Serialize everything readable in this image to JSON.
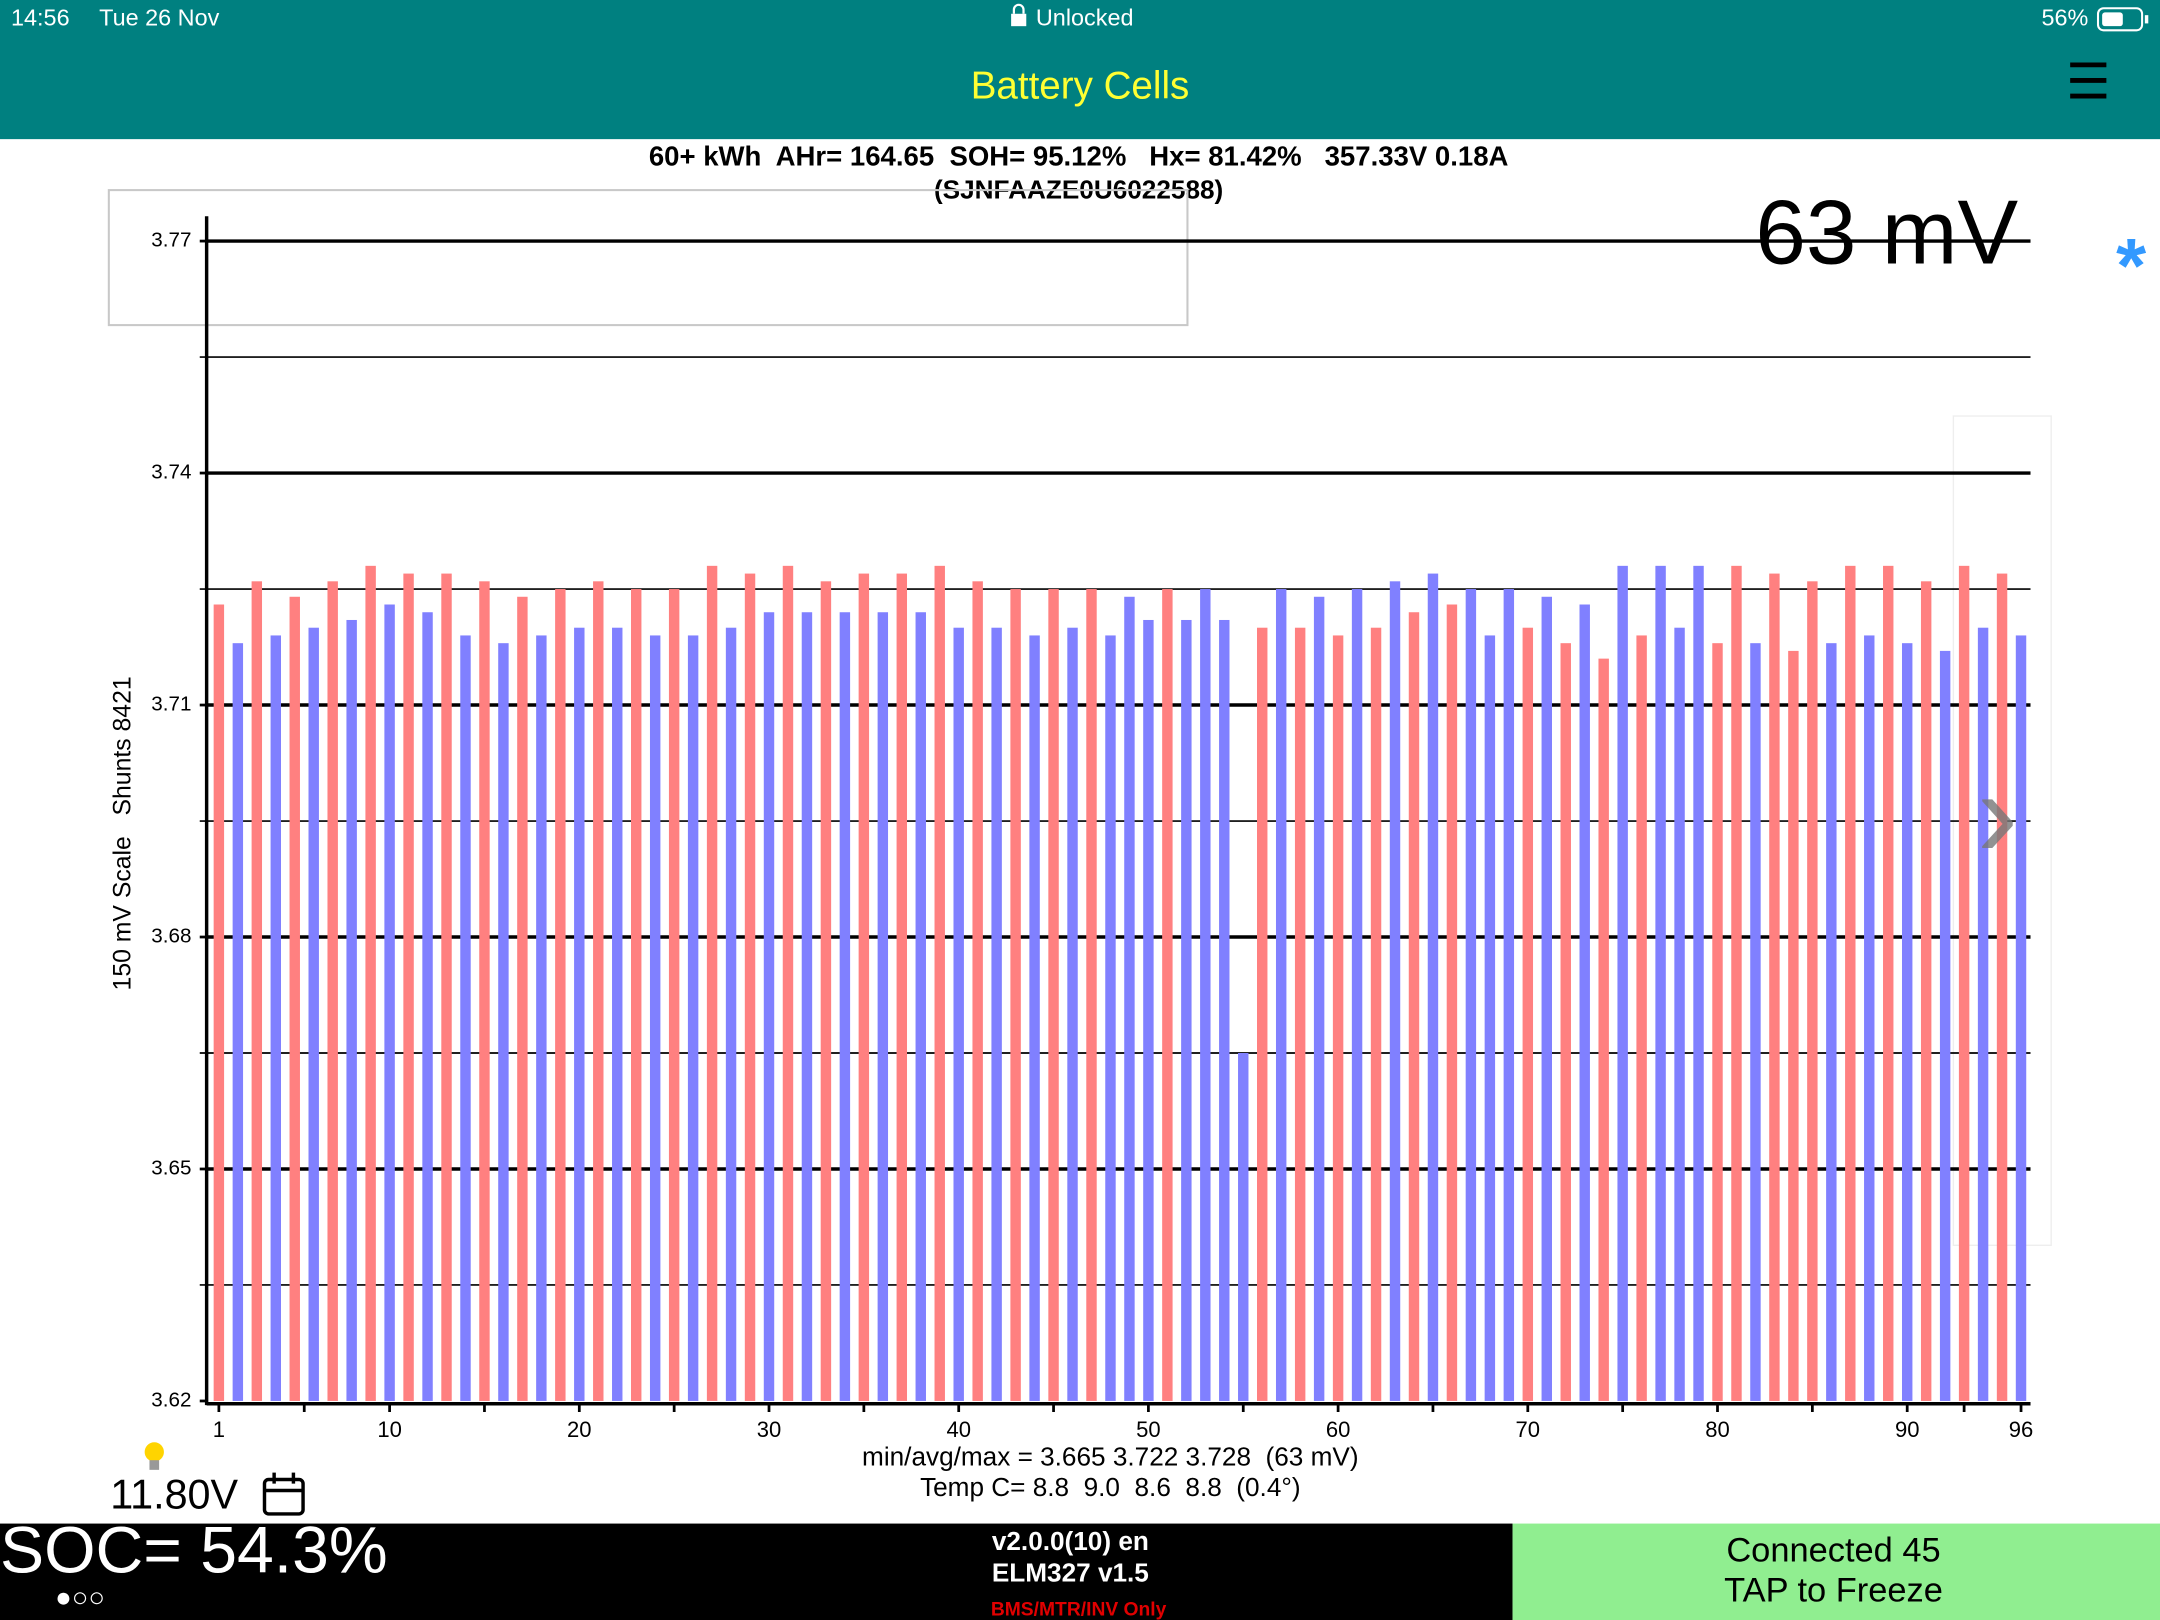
{
  "status_bar": {
    "time": "14:56",
    "date": "Tue 26 Nov",
    "lock": "Unlocked",
    "battery": "56%"
  },
  "header": {
    "title": "Battery Cells",
    "menu": "☰"
  },
  "info": {
    "summary": "60+ kWh  AHr= 164.65  SOH= 95.12%   Hx= 81.42%   357.33V 0.18A",
    "vin": "(SJNFAAZE0U6022588)"
  },
  "side": {
    "star": "*",
    "next": "›"
  },
  "aux": {
    "voltage": "11.80V"
  },
  "footer": {
    "soc": "SOC= 54.3%",
    "pager": "●○○",
    "version": "v2.0.0(10) en",
    "adapter": "ELM327 v1.5",
    "mode": "BMS/MTR/INV Only",
    "connection": "Connected 45",
    "action": "TAP to Freeze"
  },
  "chart_data": {
    "type": "bar",
    "corner_label": "63 mV",
    "ylabel": "150 mV Scale   Shunts 8421",
    "annotations": [
      "min/avg/max = 3.665 3.722 3.728  (63 mV)",
      "Temp C= 8.8  9.0  8.6  8.8  (0.4°)"
    ],
    "x": [
      1,
      2,
      3,
      4,
      5,
      6,
      7,
      8,
      9,
      10,
      11,
      12,
      13,
      14,
      15,
      16,
      17,
      18,
      19,
      20,
      21,
      22,
      23,
      24,
      25,
      26,
      27,
      28,
      29,
      30,
      31,
      32,
      33,
      34,
      35,
      36,
      37,
      38,
      39,
      40,
      41,
      42,
      43,
      44,
      45,
      46,
      47,
      48,
      49,
      50,
      51,
      52,
      53,
      54,
      55,
      56,
      57,
      58,
      59,
      60,
      61,
      62,
      63,
      64,
      65,
      66,
      67,
      68,
      69,
      70,
      71,
      72,
      73,
      74,
      75,
      76,
      77,
      78,
      79,
      80,
      81,
      82,
      83,
      84,
      85,
      86,
      87,
      88,
      89,
      90,
      91,
      92,
      93,
      94,
      95,
      96
    ],
    "values": [
      3.723,
      3.718,
      3.726,
      3.719,
      3.724,
      3.72,
      3.726,
      3.721,
      3.728,
      3.723,
      3.727,
      3.722,
      3.727,
      3.719,
      3.726,
      3.718,
      3.724,
      3.719,
      3.725,
      3.72,
      3.726,
      3.72,
      3.725,
      3.719,
      3.725,
      3.719,
      3.728,
      3.72,
      3.727,
      3.722,
      3.728,
      3.722,
      3.726,
      3.722,
      3.727,
      3.722,
      3.727,
      3.722,
      3.728,
      3.72,
      3.726,
      3.72,
      3.725,
      3.719,
      3.725,
      3.72,
      3.725,
      3.719,
      3.724,
      3.721,
      3.725,
      3.721,
      3.725,
      3.721,
      3.665,
      3.72,
      3.725,
      3.72,
      3.724,
      3.719,
      3.725,
      3.72,
      3.726,
      3.722,
      3.727,
      3.723,
      3.725,
      3.719,
      3.725,
      3.72,
      3.724,
      3.718,
      3.723,
      3.716,
      3.728,
      3.719,
      3.728,
      3.72,
      3.728,
      3.718,
      3.728,
      3.718,
      3.727,
      3.717,
      3.726,
      3.718,
      3.728,
      3.719,
      3.728,
      3.718,
      3.726,
      3.717,
      3.728,
      3.72,
      3.727,
      3.719
    ],
    "colors": [
      "#ff8080",
      "#8080ff",
      "#ff8080",
      "#8080ff",
      "#ff8080",
      "#8080ff",
      "#ff8080",
      "#8080ff",
      "#ff8080",
      "#8080ff",
      "#ff8080",
      "#8080ff",
      "#ff8080",
      "#8080ff",
      "#ff8080",
      "#8080ff",
      "#ff8080",
      "#8080ff",
      "#ff8080",
      "#8080ff",
      "#ff8080",
      "#8080ff",
      "#ff8080",
      "#8080ff",
      "#ff8080",
      "#8080ff",
      "#ff8080",
      "#8080ff",
      "#ff8080",
      "#8080ff",
      "#ff8080",
      "#8080ff",
      "#ff8080",
      "#8080ff",
      "#ff8080",
      "#8080ff",
      "#ff8080",
      "#8080ff",
      "#ff8080",
      "#8080ff",
      "#ff8080",
      "#8080ff",
      "#ff8080",
      "#8080ff",
      "#ff8080",
      "#8080ff",
      "#ff8080",
      "#8080ff",
      "#8080ff",
      "#8080ff",
      "#ff8080",
      "#8080ff",
      "#8080ff",
      "#8080ff",
      "#8080ff",
      "#ff8080",
      "#8080ff",
      "#ff8080",
      "#8080ff",
      "#ff8080",
      "#8080ff",
      "#ff8080",
      "#8080ff",
      "#ff8080",
      "#8080ff",
      "#ff8080",
      "#8080ff",
      "#8080ff",
      "#8080ff",
      "#ff8080",
      "#8080ff",
      "#ff8080",
      "#8080ff",
      "#ff8080",
      "#8080ff",
      "#ff8080",
      "#8080ff",
      "#8080ff",
      "#8080ff",
      "#ff8080",
      "#ff8080",
      "#8080ff",
      "#ff8080",
      "#ff8080",
      "#ff8080",
      "#8080ff",
      "#ff8080",
      "#8080ff",
      "#ff8080",
      "#8080ff",
      "#ff8080",
      "#8080ff",
      "#ff8080",
      "#8080ff",
      "#ff8080",
      "#8080ff"
    ],
    "xlim": [
      0.5,
      96.5
    ],
    "xticks": [
      1,
      10,
      20,
      30,
      40,
      50,
      60,
      70,
      80,
      90,
      96
    ],
    "ylim": [
      3.62,
      3.77
    ],
    "yticks": [
      3.62,
      3.65,
      3.68,
      3.71,
      3.74,
      3.77
    ],
    "grid": true
  }
}
